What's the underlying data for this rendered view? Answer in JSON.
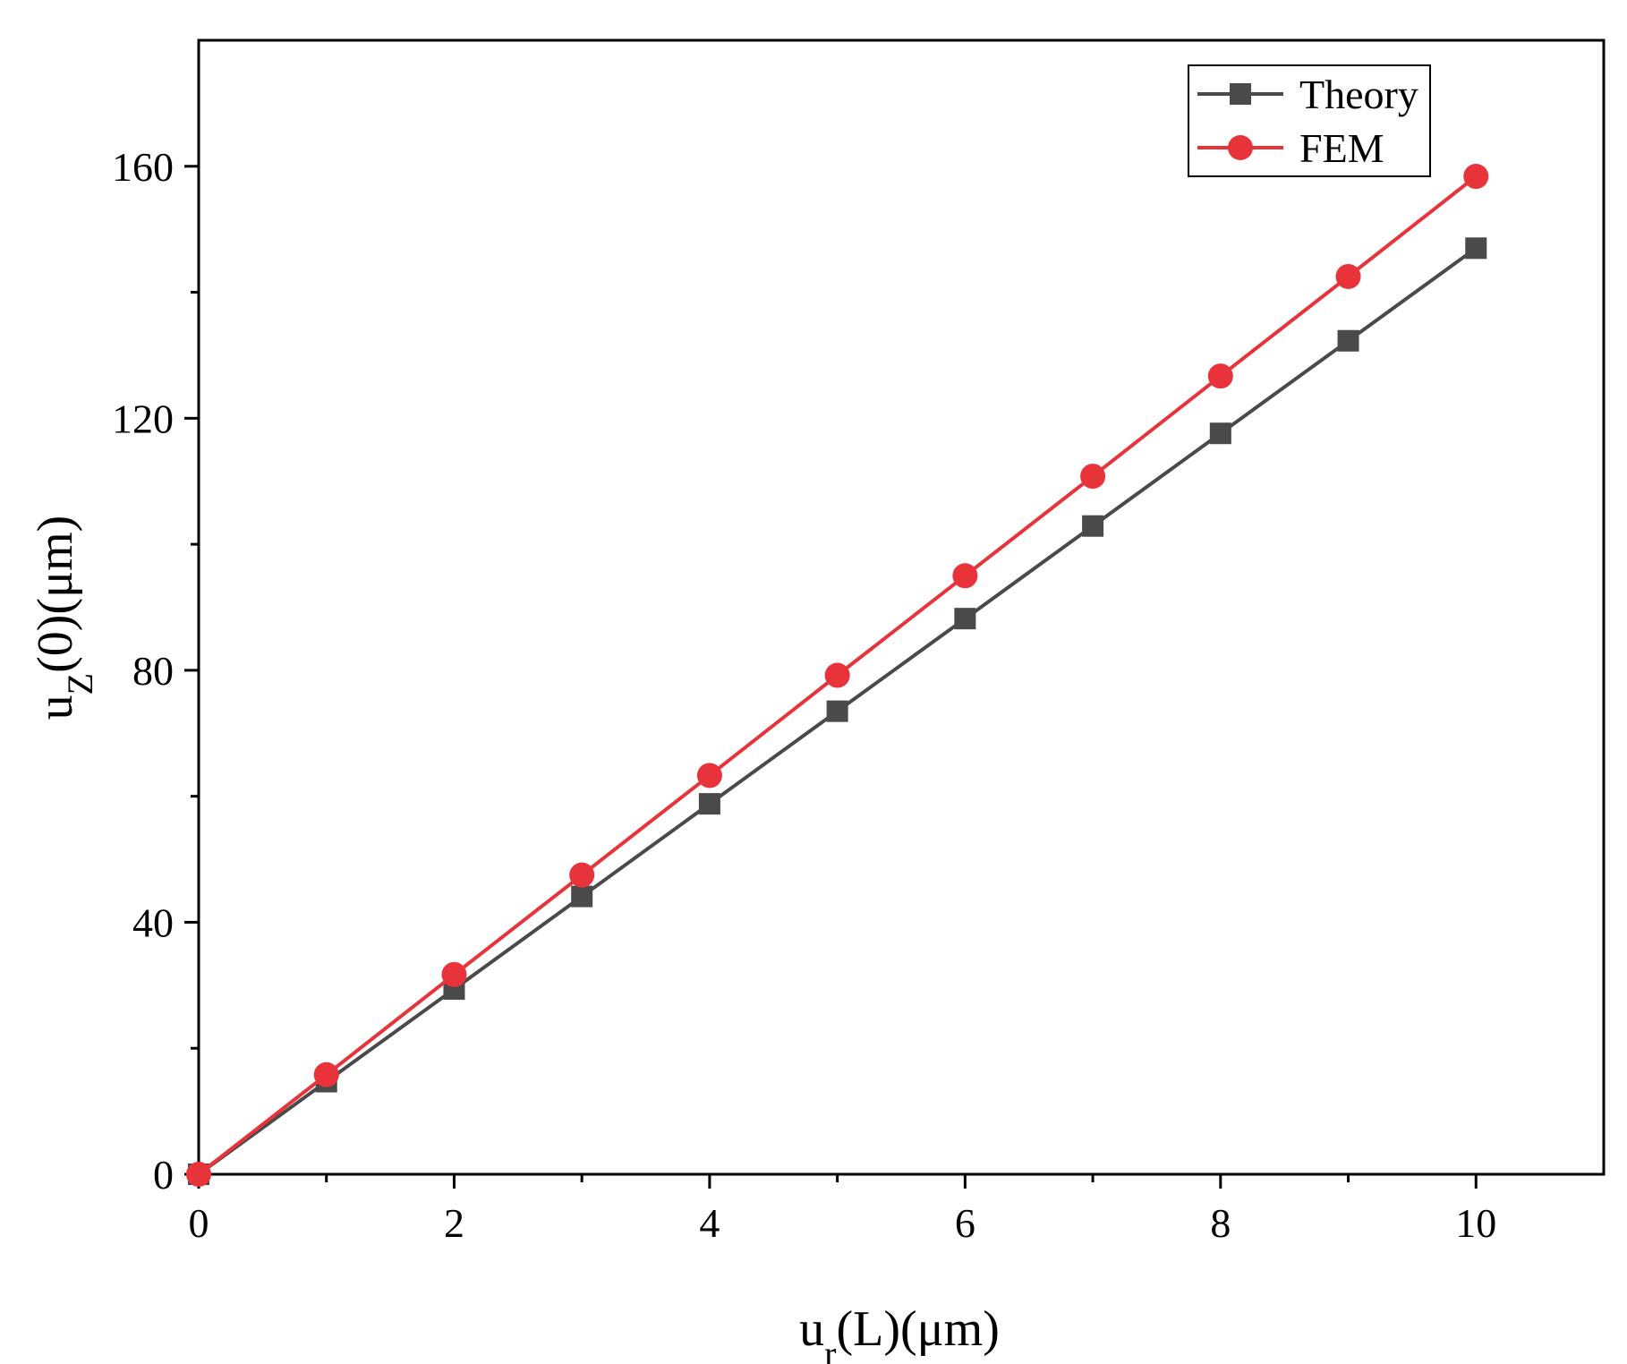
{
  "chart_data": {
    "type": "line",
    "title": "",
    "xlabel": {
      "main": "u",
      "sub": "r",
      "rest": "(L)(μm)"
    },
    "ylabel": {
      "main": "u",
      "sub": "Z",
      "rest": "(0)(μm)"
    },
    "xlim": [
      0,
      11
    ],
    "ylim": [
      0,
      180
    ],
    "x_ticks": [
      0,
      2,
      4,
      6,
      8,
      10
    ],
    "x_tick_labels": [
      "0",
      "2",
      "4",
      "6",
      "8",
      "10"
    ],
    "x_minor_ticks": [
      1,
      3,
      5,
      7,
      9
    ],
    "y_ticks": [
      0,
      40,
      80,
      120,
      160
    ],
    "y_tick_labels": [
      "0",
      "40",
      "80",
      "120",
      "160"
    ],
    "y_minor_ticks": [
      20,
      60,
      100,
      140
    ],
    "grid": false,
    "legend_position": "top-right",
    "x": [
      0,
      1,
      2,
      3,
      4,
      5,
      6,
      7,
      8,
      9,
      10
    ],
    "series": [
      {
        "name": "Theory",
        "marker": "square",
        "color": "#4a4a4a",
        "values": [
          0,
          14.7,
          29.4,
          44.1,
          58.8,
          73.5,
          88.2,
          102.9,
          117.6,
          132.3,
          147.0
        ]
      },
      {
        "name": "FEM",
        "marker": "circle",
        "color": "#e8333a",
        "values": [
          0,
          15.8,
          31.7,
          47.5,
          63.3,
          79.2,
          95.0,
          110.8,
          126.7,
          142.5,
          158.4
        ]
      }
    ]
  }
}
